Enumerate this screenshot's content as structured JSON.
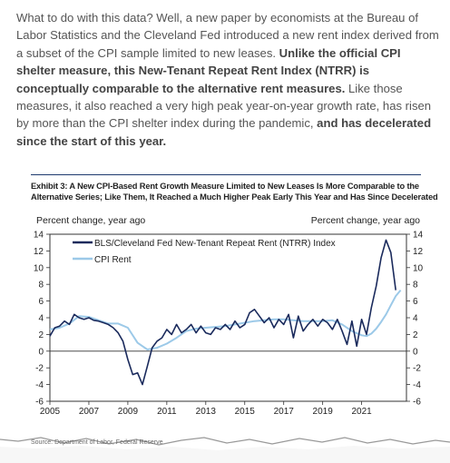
{
  "article": {
    "p1": "What to do with this data? Well, a new paper by economists at the Bureau of Labor Statistics and the Cleveland Fed introduced a new rent index derived from a subset of the CPI sample limited to new leases. ",
    "p2_bold": "Unlike the official CPI shelter measure, this New-Tenant Repeat Rent Index (NTRR) is conceptually comparable to the alternative rent measures.",
    "p3": " Like those measures, it also reached a very high peak year-on-year growth rate, has risen by more than the CPI shelter index during the pandemic, ",
    "p4_bold": "and has decelerated since the start of this year."
  },
  "exhibit_title": "Exhibit 3: A New CPI-Based Rent Growth Measure Limited to New Leases Is More Comparable to the Alternative Series; Like Them, It Reached a Much Higher Peak Early This Year and Has Since Decelerated",
  "source": "Source: Department of Labor, Federal Reserve",
  "colors": {
    "ntrr": "#1a2a5c",
    "cpi": "#9cc9e8",
    "title_rule": "#1f3b6e"
  },
  "chart_data": {
    "type": "line",
    "ylabel_left": "Percent change, year ago",
    "ylabel_right": "Percent change, year ago",
    "ylim": [
      -6,
      14
    ],
    "yticks": [
      -6,
      -4,
      -2,
      0,
      2,
      4,
      6,
      8,
      10,
      12,
      14
    ],
    "xlim": [
      2005,
      2023.3
    ],
    "xticks": [
      2005,
      2007,
      2009,
      2011,
      2013,
      2015,
      2017,
      2019,
      2021
    ],
    "legend_placement": "top-left",
    "series": [
      {
        "name": "BLS/Cleveland Fed New-Tenant Repeat Rent (NTRR) Index",
        "x": [
          2005.0,
          2005.25,
          2005.5,
          2005.75,
          2006.0,
          2006.25,
          2006.5,
          2006.75,
          2007.0,
          2007.25,
          2007.5,
          2007.75,
          2008.0,
          2008.25,
          2008.5,
          2008.75,
          2009.0,
          2009.25,
          2009.5,
          2009.75,
          2010.0,
          2010.25,
          2010.5,
          2010.75,
          2011.0,
          2011.25,
          2011.5,
          2011.75,
          2012.0,
          2012.25,
          2012.5,
          2012.75,
          2013.0,
          2013.25,
          2013.5,
          2013.75,
          2014.0,
          2014.25,
          2014.5,
          2014.75,
          2015.0,
          2015.25,
          2015.5,
          2015.75,
          2016.0,
          2016.25,
          2016.5,
          2016.75,
          2017.0,
          2017.25,
          2017.5,
          2017.75,
          2018.0,
          2018.25,
          2018.5,
          2018.75,
          2019.0,
          2019.25,
          2019.5,
          2019.75,
          2020.0,
          2020.25,
          2020.5,
          2020.75,
          2021.0,
          2021.25,
          2021.5,
          2021.75,
          2022.0,
          2022.25,
          2022.5,
          2022.75
        ],
        "y": [
          1.8,
          2.8,
          3.0,
          3.6,
          3.2,
          4.4,
          4.0,
          3.8,
          4.0,
          3.7,
          3.6,
          3.4,
          3.2,
          2.8,
          2.2,
          1.2,
          -1.0,
          -2.8,
          -2.6,
          -4.0,
          -1.8,
          0.4,
          1.2,
          1.6,
          2.6,
          2.0,
          3.2,
          2.2,
          2.6,
          3.2,
          2.2,
          3.0,
          2.2,
          2.0,
          2.8,
          2.6,
          3.2,
          2.6,
          3.6,
          2.8,
          3.2,
          4.6,
          5.0,
          4.2,
          3.4,
          4.0,
          2.8,
          3.8,
          3.2,
          4.4,
          1.6,
          4.2,
          2.4,
          3.2,
          3.8,
          3.0,
          3.8,
          3.4,
          2.6,
          3.8,
          2.4,
          0.8,
          3.6,
          0.6,
          3.8,
          2.0,
          5.2,
          7.8,
          11.2,
          13.3,
          11.8,
          7.3
        ]
      },
      {
        "name": "CPI Rent",
        "x": [
          2005.0,
          2005.5,
          2006.0,
          2006.5,
          2007.0,
          2007.5,
          2008.0,
          2008.5,
          2009.0,
          2009.5,
          2010.0,
          2010.5,
          2011.0,
          2011.5,
          2012.0,
          2012.5,
          2013.0,
          2013.5,
          2014.0,
          2014.5,
          2015.0,
          2015.5,
          2016.0,
          2016.5,
          2017.0,
          2017.5,
          2018.0,
          2018.5,
          2019.0,
          2019.5,
          2020.0,
          2020.5,
          2021.0,
          2021.25,
          2021.5,
          2021.75,
          2022.0,
          2022.25,
          2022.5,
          2022.75,
          2023.0
        ],
        "y": [
          2.6,
          2.8,
          3.3,
          4.2,
          4.1,
          3.7,
          3.3,
          3.3,
          2.8,
          1.0,
          0.2,
          0.4,
          0.9,
          1.6,
          2.4,
          2.7,
          2.8,
          2.9,
          3.0,
          3.2,
          3.4,
          3.6,
          3.7,
          3.8,
          3.8,
          3.7,
          3.6,
          3.6,
          3.6,
          3.7,
          3.2,
          2.4,
          1.9,
          1.8,
          2.1,
          2.7,
          3.5,
          4.4,
          5.5,
          6.6,
          7.3
        ]
      }
    ]
  }
}
